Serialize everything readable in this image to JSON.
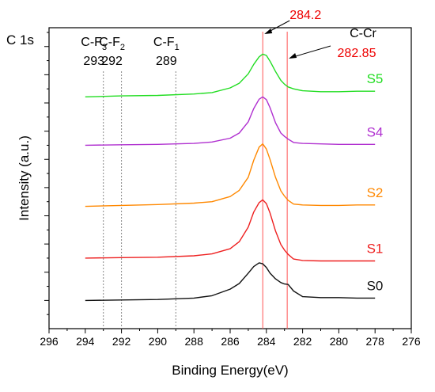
{
  "chart_data": {
    "type": "line",
    "title": "C 1s",
    "xlabel": "Binding Energy(eV)",
    "ylabel": "Intensity (a.u.)",
    "xlim": [
      296,
      276
    ],
    "x_reversed": true,
    "x_ticks": [
      "296",
      "294",
      "292",
      "290",
      "288",
      "286",
      "284",
      "282",
      "280",
      "278",
      "276"
    ],
    "y_ticks_labeled": false,
    "grid": false,
    "reference_lines": [
      {
        "x": 293,
        "style": "dotted",
        "color": "#888888",
        "label_main": "C-F",
        "label_sub": "3",
        "label_value": "293"
      },
      {
        "x": 292,
        "style": "dotted",
        "color": "#888888",
        "label_main": "C-F",
        "label_sub": "2",
        "label_value": "292"
      },
      {
        "x": 289,
        "style": "dotted",
        "color": "#888888",
        "label_main": "C-F",
        "label_sub": "1",
        "label_value": "289"
      },
      {
        "x": 284.2,
        "style": "solid",
        "color": "#ff5555",
        "label_value": "284.2"
      },
      {
        "x": 282.85,
        "style": "solid",
        "color": "#ff5555",
        "label_main": "C-Cr",
        "label_value": "282.85"
      }
    ],
    "series": [
      {
        "name": "S5",
        "color": "#22dd22",
        "offset": 4.9,
        "x": [
          294,
          292,
          290,
          288,
          287,
          286,
          285.5,
          285,
          284.7,
          284.4,
          284.2,
          284,
          283.8,
          283.5,
          283.2,
          283,
          282.8,
          282.5,
          282,
          281,
          280,
          279,
          278
        ],
        "values": [
          0.03,
          0.05,
          0.06,
          0.09,
          0.12,
          0.22,
          0.32,
          0.52,
          0.72,
          0.88,
          0.94,
          0.91,
          0.79,
          0.57,
          0.38,
          0.3,
          0.24,
          0.2,
          0.16,
          0.14,
          0.14,
          0.15,
          0.15
        ]
      },
      {
        "name": "S4",
        "color": "#b030d0",
        "offset": 3.9,
        "x": [
          294,
          292,
          290,
          288,
          287,
          286,
          285.5,
          285,
          284.7,
          284.4,
          284.2,
          284,
          283.8,
          283.5,
          283.2,
          283,
          282.8,
          282.5,
          282,
          281,
          280,
          279,
          278
        ],
        "values": [
          0.0,
          0.01,
          0.02,
          0.04,
          0.07,
          0.15,
          0.26,
          0.5,
          0.78,
          0.98,
          1.03,
          0.97,
          0.8,
          0.48,
          0.26,
          0.19,
          0.13,
          0.06,
          0.04,
          0.03,
          0.02,
          0.02,
          0.02
        ]
      },
      {
        "name": "S2",
        "color": "#ff8800",
        "offset": 2.6,
        "x": [
          294,
          292,
          290,
          288,
          287,
          286,
          285.5,
          285,
          284.7,
          284.4,
          284.2,
          284,
          283.8,
          283.5,
          283.2,
          283,
          282.8,
          282.5,
          282,
          281,
          280,
          279,
          278
        ],
        "values": [
          0.0,
          0.02,
          0.04,
          0.07,
          0.1,
          0.21,
          0.34,
          0.62,
          0.98,
          1.26,
          1.33,
          1.22,
          1.0,
          0.62,
          0.33,
          0.22,
          0.13,
          0.05,
          0.03,
          0.02,
          0.02,
          0.03,
          0.03
        ]
      },
      {
        "name": "S1",
        "color": "#ee2020",
        "offset": 1.5,
        "x": [
          294,
          292,
          290,
          288,
          287,
          286,
          285.5,
          285,
          284.7,
          284.4,
          284.2,
          284,
          283.8,
          283.5,
          283.2,
          283,
          282.8,
          282.5,
          282,
          281,
          280,
          279,
          278
        ],
        "values": [
          0.0,
          0.01,
          0.02,
          0.05,
          0.09,
          0.2,
          0.35,
          0.66,
          0.98,
          1.18,
          1.24,
          1.16,
          0.96,
          0.58,
          0.29,
          0.17,
          0.08,
          -0.02,
          -0.05,
          -0.06,
          -0.06,
          -0.06,
          -0.06
        ]
      },
      {
        "name": "S0",
        "color": "#111111",
        "offset": 0.6,
        "x": [
          294,
          292,
          290,
          288,
          287,
          286,
          285.5,
          285,
          284.7,
          284.4,
          284.2,
          284,
          283.8,
          283.5,
          283.2,
          283,
          282.8,
          282.5,
          282,
          281,
          280,
          279,
          278
        ],
        "values": [
          0.0,
          0.01,
          0.02,
          0.05,
          0.1,
          0.24,
          0.36,
          0.58,
          0.72,
          0.8,
          0.78,
          0.7,
          0.58,
          0.46,
          0.38,
          0.35,
          0.34,
          0.2,
          0.08,
          0.06,
          0.06,
          0.05,
          0.05
        ]
      }
    ]
  }
}
